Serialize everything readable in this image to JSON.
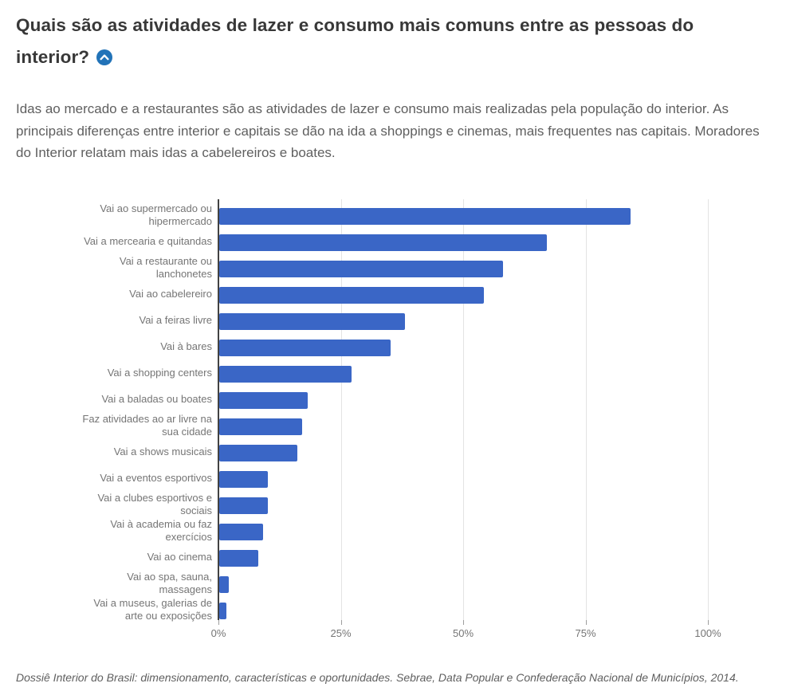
{
  "header": {
    "title": "Quais são as atividades de lazer e consumo mais comuns entre as pessoas do interior?",
    "collapse_icon": "chevron-up-circle",
    "icon_color": "#2273b8",
    "description": "Idas ao mercado e a restaurantes são as atividades de lazer e consumo mais realizadas pela população do interior. As principais diferenças entre interior e capitais se dão na ida a shoppings e cinemas, mais frequentes nas capitais. Moradores do Interior relatam mais idas a cabelereiros e boates."
  },
  "chart_data": {
    "type": "bar",
    "orientation": "horizontal",
    "title": "",
    "xlabel": "",
    "ylabel": "",
    "unit": "%",
    "categories": [
      "Vai ao supermercado ou hipermercado",
      "Vai a mercearia e quitandas",
      "Vai a restaurante ou lanchonetes",
      "Vai ao cabelereiro",
      "Vai a feiras livre",
      "Vai à bares",
      "Vai a shopping centers",
      "Vai a baladas ou boates",
      "Faz atividades ao ar livre na sua cidade",
      "Vai a shows musicais",
      "Vai a eventos esportivos",
      "Vai a clubes esportivos e sociais",
      "Vai à academia ou faz exercícios",
      "Vai ao cinema",
      "Vai ao spa, sauna, massagens",
      "Vai a museus, galerias de arte ou exposições"
    ],
    "values": [
      84,
      67,
      58,
      54,
      38,
      35,
      27,
      18,
      17,
      16,
      10,
      10,
      9,
      8,
      2,
      1.5
    ],
    "xlim": [
      0,
      100
    ],
    "x_ticks": [
      "0%",
      "25%",
      "50%",
      "75%",
      "100%"
    ],
    "x_tick_values": [
      0,
      25,
      50,
      75,
      100
    ],
    "grid": true,
    "legend": "none",
    "bar_color": "#3a66c6"
  },
  "footer": {
    "source": "Dossiê Interior do Brasil: dimensionamento, características e oportunidades. Sebrae, Data Popular e Confederação Nacional de Municípios, 2014."
  }
}
